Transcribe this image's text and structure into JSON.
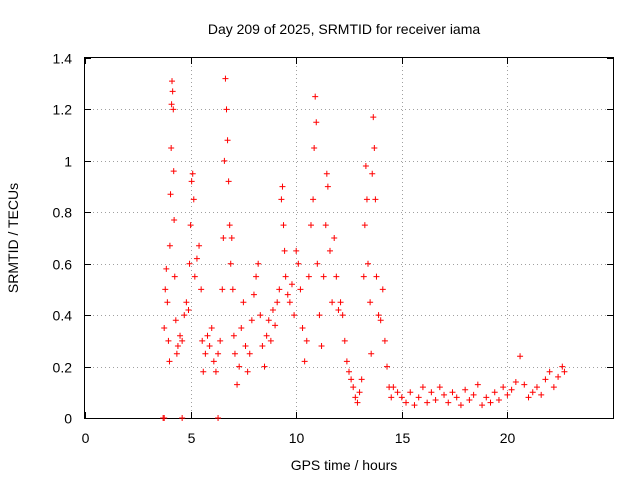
{
  "chart_data": {
    "type": "scatter",
    "title": "Day 209 of 2025, SRMTID for receiver iama",
    "xlabel": "GPS time / hours",
    "ylabel": "SRMTID / TECUs",
    "xlim": [
      0,
      25
    ],
    "ylim": [
      0,
      1.4
    ],
    "xticks": [
      0,
      5,
      10,
      15,
      20
    ],
    "yticks": [
      0,
      0.2,
      0.4,
      0.6,
      0.8,
      1,
      1.2,
      1.4
    ],
    "xtick_labels": [
      "0",
      "5",
      "10",
      "15",
      "20"
    ],
    "ytick_labels": [
      "0",
      "0.2",
      "0.4",
      "0.6",
      "0.8",
      "1",
      "1.2",
      "1.4"
    ],
    "grid": true,
    "marker": "+",
    "color": "#ff0000",
    "series": [
      {
        "name": "SRMTID",
        "points": [
          [
            3.7,
            0.0
          ],
          [
            3.75,
            0.0
          ],
          [
            4.6,
            0.0
          ],
          [
            6.3,
            0.0
          ],
          [
            3.75,
            0.35
          ],
          [
            3.8,
            0.5
          ],
          [
            3.85,
            0.58
          ],
          [
            3.9,
            0.45
          ],
          [
            3.95,
            0.3
          ],
          [
            4.0,
            0.22
          ],
          [
            4.02,
            0.67
          ],
          [
            4.05,
            0.87
          ],
          [
            4.08,
            1.05
          ],
          [
            4.1,
            1.22
          ],
          [
            4.12,
            1.31
          ],
          [
            4.15,
            1.27
          ],
          [
            4.18,
            1.2
          ],
          [
            4.2,
            0.96
          ],
          [
            4.22,
            0.77
          ],
          [
            4.25,
            0.55
          ],
          [
            4.3,
            0.38
          ],
          [
            4.35,
            0.25
          ],
          [
            4.4,
            0.28
          ],
          [
            4.5,
            0.32
          ],
          [
            4.6,
            0.3
          ],
          [
            4.7,
            0.4
          ],
          [
            4.8,
            0.45
          ],
          [
            4.9,
            0.42
          ],
          [
            4.95,
            0.6
          ],
          [
            5.0,
            0.75
          ],
          [
            5.05,
            0.92
          ],
          [
            5.1,
            0.95
          ],
          [
            5.15,
            0.85
          ],
          [
            5.2,
            0.55
          ],
          [
            5.3,
            0.62
          ],
          [
            5.4,
            0.67
          ],
          [
            5.5,
            0.5
          ],
          [
            5.55,
            0.3
          ],
          [
            5.6,
            0.18
          ],
          [
            5.7,
            0.25
          ],
          [
            5.8,
            0.32
          ],
          [
            5.9,
            0.28
          ],
          [
            6.0,
            0.35
          ],
          [
            6.1,
            0.22
          ],
          [
            6.2,
            0.18
          ],
          [
            6.3,
            0.25
          ],
          [
            6.4,
            0.3
          ],
          [
            6.5,
            0.5
          ],
          [
            6.55,
            0.7
          ],
          [
            6.6,
            1.0
          ],
          [
            6.65,
            1.32
          ],
          [
            6.7,
            1.2
          ],
          [
            6.75,
            1.08
          ],
          [
            6.8,
            0.92
          ],
          [
            6.85,
            0.75
          ],
          [
            6.9,
            0.6
          ],
          [
            6.95,
            0.7
          ],
          [
            7.0,
            0.5
          ],
          [
            7.05,
            0.32
          ],
          [
            7.1,
            0.25
          ],
          [
            7.2,
            0.13
          ],
          [
            7.3,
            0.2
          ],
          [
            7.4,
            0.35
          ],
          [
            7.5,
            0.45
          ],
          [
            7.6,
            0.28
          ],
          [
            7.7,
            0.18
          ],
          [
            7.8,
            0.25
          ],
          [
            7.9,
            0.38
          ],
          [
            8.0,
            0.48
          ],
          [
            8.1,
            0.55
          ],
          [
            8.2,
            0.6
          ],
          [
            8.3,
            0.4
          ],
          [
            8.4,
            0.28
          ],
          [
            8.5,
            0.2
          ],
          [
            8.6,
            0.32
          ],
          [
            8.7,
            0.38
          ],
          [
            8.8,
            0.3
          ],
          [
            8.9,
            0.42
          ],
          [
            9.0,
            0.36
          ],
          [
            9.1,
            0.45
          ],
          [
            9.2,
            0.5
          ],
          [
            9.3,
            0.85
          ],
          [
            9.35,
            0.9
          ],
          [
            9.4,
            0.75
          ],
          [
            9.45,
            0.65
          ],
          [
            9.5,
            0.55
          ],
          [
            9.6,
            0.48
          ],
          [
            9.7,
            0.45
          ],
          [
            9.8,
            0.52
          ],
          [
            9.9,
            0.4
          ],
          [
            10.0,
            0.65
          ],
          [
            10.1,
            0.6
          ],
          [
            10.2,
            0.5
          ],
          [
            10.3,
            0.35
          ],
          [
            10.4,
            0.22
          ],
          [
            10.5,
            0.3
          ],
          [
            10.6,
            0.55
          ],
          [
            10.7,
            0.75
          ],
          [
            10.8,
            0.85
          ],
          [
            10.85,
            1.05
          ],
          [
            10.9,
            1.25
          ],
          [
            10.95,
            1.15
          ],
          [
            11.0,
            0.6
          ],
          [
            11.1,
            0.4
          ],
          [
            11.2,
            0.28
          ],
          [
            11.3,
            0.55
          ],
          [
            11.4,
            0.75
          ],
          [
            11.45,
            0.95
          ],
          [
            11.5,
            0.9
          ],
          [
            11.6,
            0.65
          ],
          [
            11.7,
            0.45
          ],
          [
            11.8,
            0.7
          ],
          [
            11.9,
            0.55
          ],
          [
            12.0,
            0.42
          ],
          [
            12.1,
            0.45
          ],
          [
            12.2,
            0.4
          ],
          [
            12.3,
            0.3
          ],
          [
            12.4,
            0.22
          ],
          [
            12.5,
            0.18
          ],
          [
            12.6,
            0.15
          ],
          [
            12.7,
            0.12
          ],
          [
            12.8,
            0.08
          ],
          [
            12.9,
            0.06
          ],
          [
            13.0,
            0.1
          ],
          [
            13.1,
            0.15
          ],
          [
            13.2,
            0.55
          ],
          [
            13.25,
            0.75
          ],
          [
            13.3,
            0.98
          ],
          [
            13.35,
            0.85
          ],
          [
            13.4,
            0.6
          ],
          [
            13.5,
            0.45
          ],
          [
            13.55,
            0.25
          ],
          [
            13.6,
            0.95
          ],
          [
            13.65,
            1.17
          ],
          [
            13.7,
            1.05
          ],
          [
            13.75,
            0.85
          ],
          [
            13.8,
            0.55
          ],
          [
            13.9,
            0.4
          ],
          [
            14.0,
            0.38
          ],
          [
            14.1,
            0.5
          ],
          [
            14.2,
            0.3
          ],
          [
            14.3,
            0.2
          ],
          [
            14.4,
            0.12
          ],
          [
            14.5,
            0.08
          ],
          [
            14.6,
            0.12
          ],
          [
            14.8,
            0.1
          ],
          [
            15.0,
            0.08
          ],
          [
            15.2,
            0.06
          ],
          [
            15.4,
            0.1
          ],
          [
            15.6,
            0.05
          ],
          [
            15.8,
            0.08
          ],
          [
            16.0,
            0.12
          ],
          [
            16.2,
            0.06
          ],
          [
            16.4,
            0.1
          ],
          [
            16.6,
            0.07
          ],
          [
            16.8,
            0.12
          ],
          [
            17.0,
            0.09
          ],
          [
            17.2,
            0.06
          ],
          [
            17.4,
            0.1
          ],
          [
            17.6,
            0.08
          ],
          [
            17.8,
            0.05
          ],
          [
            18.0,
            0.11
          ],
          [
            18.2,
            0.07
          ],
          [
            18.4,
            0.09
          ],
          [
            18.6,
            0.13
          ],
          [
            18.8,
            0.05
          ],
          [
            19.0,
            0.08
          ],
          [
            19.2,
            0.06
          ],
          [
            19.4,
            0.1
          ],
          [
            19.6,
            0.07
          ],
          [
            19.8,
            0.12
          ],
          [
            20.0,
            0.09
          ],
          [
            20.2,
            0.11
          ],
          [
            20.4,
            0.14
          ],
          [
            20.6,
            0.24
          ],
          [
            20.8,
            0.13
          ],
          [
            21.0,
            0.08
          ],
          [
            21.2,
            0.1
          ],
          [
            21.4,
            0.12
          ],
          [
            21.6,
            0.09
          ],
          [
            21.8,
            0.15
          ],
          [
            22.0,
            0.18
          ],
          [
            22.2,
            0.12
          ],
          [
            22.4,
            0.16
          ],
          [
            22.6,
            0.2
          ],
          [
            22.7,
            0.18
          ]
        ]
      }
    ]
  }
}
